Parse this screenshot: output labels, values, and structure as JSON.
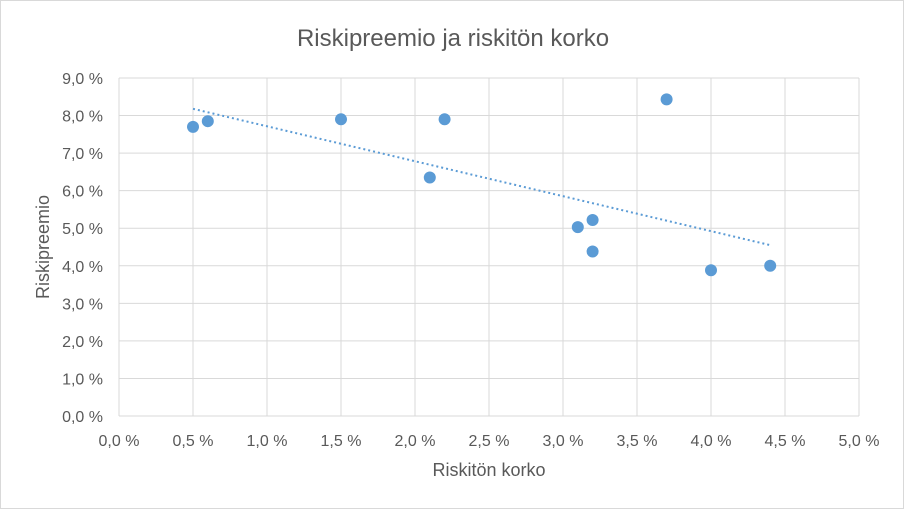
{
  "chart_data": {
    "type": "scatter",
    "title": "Riskipreemio ja riskitön korko",
    "xlabel": "Riskitön korko",
    "ylabel": "Riskipreemio",
    "xlim": [
      0.0,
      5.0
    ],
    "ylim": [
      0.0,
      9.0
    ],
    "x_ticks": [
      0.0,
      0.5,
      1.0,
      1.5,
      2.0,
      2.5,
      3.0,
      3.5,
      4.0,
      4.5,
      5.0
    ],
    "y_ticks": [
      0.0,
      1.0,
      2.0,
      3.0,
      4.0,
      5.0,
      6.0,
      7.0,
      8.0,
      9.0
    ],
    "x_tick_labels": [
      "0,0 %",
      "0,5 %",
      "1,0 %",
      "1,5 %",
      "2,0 %",
      "2,5 %",
      "3,0 %",
      "3,5 %",
      "4,0 %",
      "4,5 %",
      "5,0 %"
    ],
    "y_tick_labels": [
      "0,0 %",
      "1,0 %",
      "2,0 %",
      "3,0 %",
      "4,0 %",
      "5,0 %",
      "6,0 %",
      "7,0 %",
      "8,0 %",
      "9,0 %"
    ],
    "grid": true,
    "points": [
      {
        "x": 0.5,
        "y": 7.7
      },
      {
        "x": 0.6,
        "y": 7.85
      },
      {
        "x": 1.5,
        "y": 7.9
      },
      {
        "x": 2.1,
        "y": 6.35
      },
      {
        "x": 2.2,
        "y": 7.9
      },
      {
        "x": 3.1,
        "y": 5.03
      },
      {
        "x": 3.2,
        "y": 5.22
      },
      {
        "x": 3.2,
        "y": 4.38
      },
      {
        "x": 3.7,
        "y": 8.43
      },
      {
        "x": 4.0,
        "y": 3.88
      },
      {
        "x": 4.4,
        "y": 4.0
      }
    ],
    "trendline": {
      "type": "linear",
      "x": [
        0.5,
        4.4
      ],
      "y": [
        8.18,
        4.55
      ]
    },
    "colors": {
      "points": "#5b9bd5",
      "trendline": "#5b9bd5",
      "grid": "#d9d9d9",
      "text": "#595959"
    }
  }
}
